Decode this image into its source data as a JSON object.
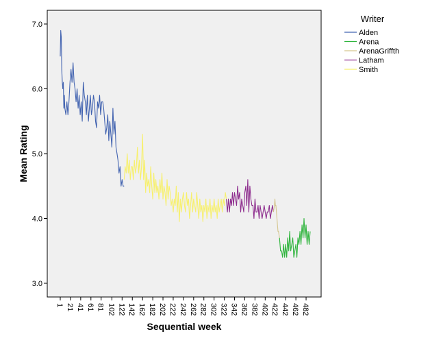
{
  "chart_data": {
    "type": "line",
    "title": "",
    "xlabel": "Sequential week",
    "ylabel": "Mean Rating",
    "xlim": [
      1,
      490
    ],
    "ylim": [
      2.8,
      7.2
    ],
    "y_ticks": [
      3.0,
      4.0,
      5.0,
      6.0,
      7.0
    ],
    "y_tick_labels": [
      "3.0",
      "4.0",
      "5.0",
      "6.0",
      "7.0"
    ],
    "x_tick_labels": [
      "1",
      "21",
      "41",
      "61",
      "81",
      "102",
      "122",
      "142",
      "162",
      "182",
      "202",
      "222",
      "242",
      "262",
      "282",
      "302",
      "322",
      "342",
      "362",
      "382",
      "402",
      "422",
      "442",
      "462",
      "482"
    ],
    "x_ticks": [
      1,
      21,
      41,
      61,
      81,
      102,
      122,
      142,
      162,
      182,
      202,
      222,
      242,
      262,
      282,
      302,
      322,
      342,
      362,
      382,
      402,
      422,
      442,
      462,
      482
    ],
    "grid": false,
    "legend": {
      "title": "Writer",
      "position": "top-right"
    },
    "series": [
      {
        "name": "Alden",
        "color": "#4263b0",
        "x": [
          1,
          2,
          3,
          4,
          5,
          6,
          7,
          8,
          9,
          10,
          12,
          14,
          16,
          18,
          20,
          22,
          24,
          26,
          28,
          30,
          32,
          34,
          36,
          38,
          40,
          42,
          44,
          46,
          48,
          50,
          52,
          54,
          56,
          58,
          60,
          62,
          64,
          66,
          68,
          70,
          72,
          74,
          76,
          78,
          80,
          82,
          84,
          86,
          88,
          90,
          92,
          94,
          96,
          98,
          100,
          102,
          104,
          106,
          108,
          110,
          112,
          114,
          116,
          118,
          120,
          122,
          124,
          126
        ],
        "values": [
          6.5,
          6.9,
          6.8,
          6.3,
          6.1,
          6.0,
          6.1,
          5.7,
          5.9,
          5.7,
          5.6,
          5.8,
          5.6,
          5.8,
          6.1,
          6.3,
          6.1,
          6.4,
          6.1,
          6.0,
          5.8,
          6.0,
          5.7,
          5.9,
          5.6,
          5.8,
          5.5,
          6.1,
          5.9,
          5.8,
          5.6,
          5.9,
          5.5,
          5.7,
          5.9,
          5.6,
          5.7,
          5.9,
          5.8,
          5.5,
          5.4,
          5.8,
          5.7,
          5.9,
          5.6,
          5.8,
          5.8,
          5.7,
          5.5,
          5.3,
          5.4,
          5.6,
          5.2,
          5.5,
          5.3,
          5.1,
          5.7,
          5.3,
          5.5,
          5.1,
          5.0,
          4.9,
          4.7,
          4.8,
          4.5,
          4.6,
          4.5,
          4.5
        ]
      },
      {
        "name": "Smith",
        "color": "#f7f06e",
        "x": [
          126,
          128,
          130,
          132,
          134,
          136,
          138,
          140,
          142,
          144,
          146,
          148,
          150,
          152,
          154,
          156,
          158,
          160,
          162,
          164,
          166,
          168,
          170,
          172,
          174,
          176,
          178,
          180,
          182,
          184,
          186,
          188,
          190,
          192,
          194,
          196,
          198,
          200,
          202,
          204,
          206,
          208,
          210,
          212,
          214,
          216,
          218,
          220,
          222,
          224,
          226,
          228,
          230,
          232,
          234,
          236,
          238,
          240,
          242,
          244,
          246,
          248,
          250,
          252,
          254,
          256,
          258,
          260,
          262,
          264,
          266,
          268,
          270,
          272,
          274,
          276,
          278,
          280,
          282,
          284,
          286,
          288,
          290,
          292,
          294,
          296,
          298,
          300,
          302,
          304,
          306,
          308,
          310,
          312,
          314,
          316,
          318,
          320,
          322,
          324,
          326
        ],
        "values": [
          4.6,
          4.8,
          4.7,
          5.0,
          4.7,
          4.9,
          4.6,
          4.8,
          4.8,
          4.6,
          4.9,
          4.7,
          4.8,
          5.1,
          4.7,
          4.9,
          4.6,
          4.8,
          5.3,
          4.6,
          4.9,
          4.4,
          4.7,
          4.5,
          4.6,
          4.4,
          4.8,
          4.5,
          4.3,
          4.7,
          4.4,
          4.6,
          4.4,
          4.5,
          4.3,
          4.6,
          4.4,
          4.7,
          4.3,
          4.5,
          4.4,
          4.2,
          4.6,
          4.3,
          4.5,
          4.4,
          4.2,
          4.3,
          4.1,
          4.3,
          4.2,
          4.5,
          4.1,
          4.4,
          3.95,
          4.3,
          4.1,
          4.3,
          4.4,
          4.2,
          4.1,
          4.4,
          4.2,
          4.3,
          4.0,
          4.2,
          4.4,
          4.1,
          4.3,
          4.2,
          4.1,
          4.4,
          4.2,
          4.0,
          4.3,
          4.1,
          4.2,
          3.95,
          4.2,
          4.1,
          4.3,
          4.0,
          4.2,
          4.1,
          4.3,
          4.0,
          4.2,
          4.1,
          4.3,
          4.1,
          4.2,
          4.0,
          4.3,
          4.1,
          4.2,
          4.3,
          4.1,
          4.3,
          4.2,
          4.4,
          4.3
        ]
      },
      {
        "name": "Latham",
        "color": "#8e2d8e",
        "x": [
          326,
          328,
          330,
          332,
          334,
          336,
          338,
          340,
          342,
          344,
          346,
          348,
          350,
          352,
          354,
          356,
          358,
          360,
          362,
          364,
          366,
          368,
          370,
          372,
          374,
          376,
          378,
          380,
          382,
          384,
          386,
          388,
          390,
          392,
          394,
          396,
          398,
          400,
          402,
          404,
          406,
          408,
          410,
          412,
          414,
          416,
          418
        ],
        "values": [
          4.3,
          4.1,
          4.3,
          4.1,
          4.3,
          4.2,
          4.4,
          4.2,
          4.4,
          4.3,
          4.2,
          4.5,
          4.3,
          4.4,
          4.1,
          4.3,
          4.2,
          4.1,
          4.4,
          4.5,
          4.2,
          4.6,
          4.1,
          4.5,
          4.3,
          4.2,
          4.2,
          4.0,
          4.3,
          4.1,
          4.1,
          4.2,
          4.0,
          4.2,
          4.1,
          4.0,
          4.1,
          4.2,
          4.1,
          4.0,
          4.1,
          4.1,
          4.2,
          4.0,
          4.1,
          4.2,
          4.1
        ]
      },
      {
        "name": "ArenaGriffth",
        "color": "#d5c68f",
        "x": [
          418,
          420,
          421,
          422,
          423,
          424,
          425,
          426,
          427,
          428,
          430
        ],
        "values": [
          4.1,
          4.2,
          4.3,
          4.2,
          4.2,
          4.1,
          4.0,
          3.9,
          3.8,
          3.8,
          3.7
        ]
      },
      {
        "name": "Arena",
        "color": "#2eb43c",
        "x": [
          430,
          432,
          434,
          436,
          438,
          440,
          442,
          444,
          446,
          448,
          450,
          452,
          454,
          456,
          458,
          460,
          462,
          464,
          466,
          468,
          470,
          472,
          474,
          476,
          478,
          480,
          482,
          484,
          486,
          488,
          490
        ],
        "values": [
          3.7,
          3.5,
          3.5,
          3.4,
          3.6,
          3.4,
          3.6,
          3.4,
          3.7,
          3.5,
          3.8,
          3.5,
          3.6,
          3.7,
          3.4,
          3.5,
          3.6,
          3.4,
          3.7,
          3.6,
          3.8,
          3.6,
          3.9,
          3.7,
          4.0,
          3.7,
          3.9,
          3.6,
          3.8,
          3.6,
          3.8
        ]
      }
    ],
    "legend_order": [
      "Alden",
      "Arena",
      "ArenaGriffth",
      "Latham",
      "Smith"
    ]
  }
}
